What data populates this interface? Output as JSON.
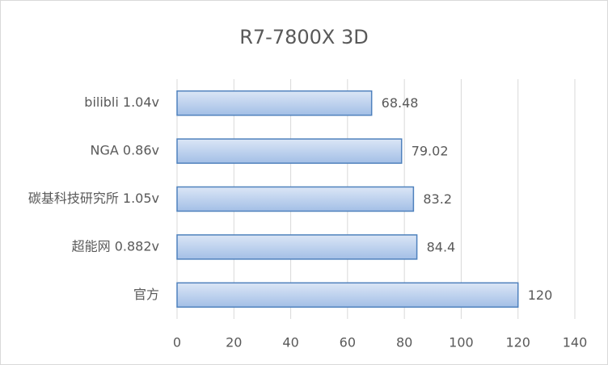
{
  "chart_data": {
    "type": "barh",
    "title": "R7-7800X 3D",
    "categories": [
      "bilibli 1.04v",
      "NGA 0.86v",
      "碳基科技研究所 1.05v",
      "超能网 0.882v",
      "官方"
    ],
    "values": [
      68.48,
      79.02,
      83.2,
      84.4,
      120
    ],
    "color": "#a3bfe6",
    "edgecolor": "#4f81bd",
    "xlim": [
      0,
      140
    ],
    "xticks": [
      0,
      20,
      40,
      60,
      80,
      100,
      120,
      140
    ],
    "grid": true
  }
}
